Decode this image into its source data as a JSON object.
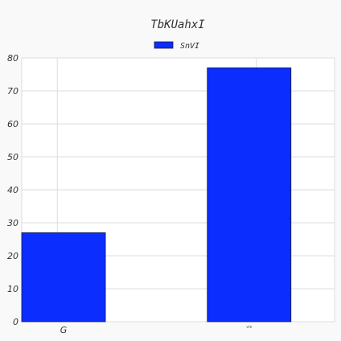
{
  "chart_data": {
    "type": "bar",
    "title": "TbKUahxI",
    "categories": [
      "G",
      "viz"
    ],
    "series": [
      {
        "name": "SnVI",
        "values": [
          27,
          77
        ],
        "color": "#0b2dfe"
      }
    ],
    "ylim": [
      0,
      80
    ],
    "yticks": [
      "0",
      "10",
      "20",
      "30",
      "40",
      "50",
      "60",
      "70",
      "80"
    ],
    "xlabel": "",
    "ylabel": "",
    "grid": true,
    "legend": "top-center",
    "colors": {
      "background": "#f9f9f9",
      "plot_background": "#ffffff",
      "grid": "#dddddd",
      "bar_edge": "#1a1a3a"
    }
  }
}
